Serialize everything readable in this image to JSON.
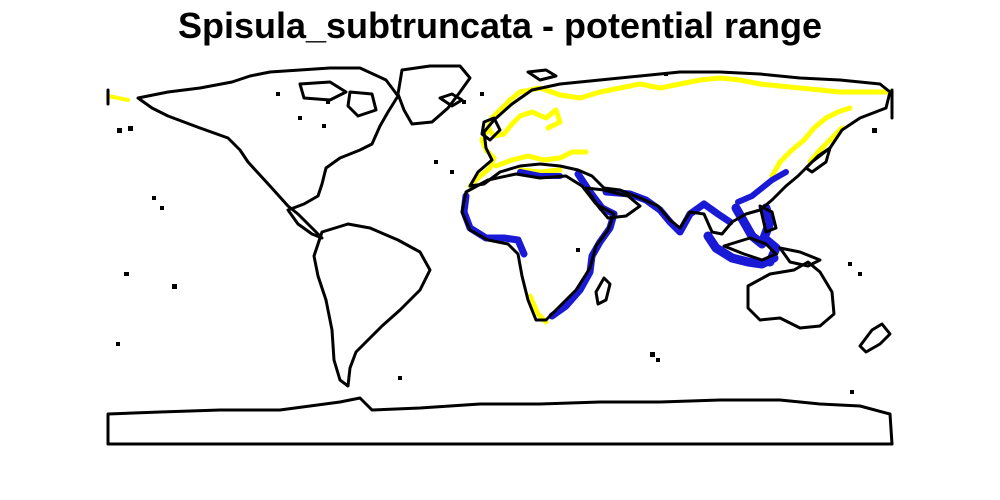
{
  "title": "Spisula_subtruncata - potential range",
  "colors": {
    "background": "#ffffff",
    "coastline": "#000000",
    "yellow_range": "#ffff00",
    "blue_range": "#1a1ad6"
  }
}
